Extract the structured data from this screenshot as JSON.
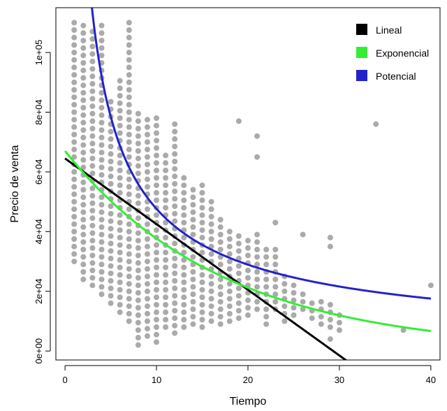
{
  "chart_data": {
    "type": "scatter",
    "xlabel": "Tiempo",
    "ylabel": "Precio de venta",
    "xlim": [
      -1,
      41
    ],
    "ylim": [
      -3000,
      115000
    ],
    "x_ticks": [
      0,
      10,
      20,
      30,
      40
    ],
    "x_tick_labels": [
      "0",
      "10",
      "20",
      "30",
      "40"
    ],
    "y_ticks": [
      0,
      20000,
      40000,
      60000,
      80000,
      100000
    ],
    "y_tick_labels": [
      "0e+00",
      "2e+04",
      "4e+04",
      "6e+04",
      "8e+04",
      "1e+05"
    ],
    "grid": false,
    "legend_position": "top-right",
    "point_color": "#AAAAAA",
    "scatter_columns": [
      {
        "x": 1,
        "min": 30000,
        "max": 110000
      },
      {
        "x": 2,
        "min": 24000,
        "max": 111000
      },
      {
        "x": 3,
        "min": 22000,
        "max": 109000
      },
      {
        "x": 4,
        "min": 19000,
        "max": 111000
      },
      {
        "x": 5,
        "min": 16000,
        "max": 85000
      },
      {
        "x": 6,
        "min": 13000,
        "max": 92000
      },
      {
        "x": 7,
        "min": 10000,
        "max": 110000
      },
      {
        "x": 8,
        "min": 2000,
        "max": 80000
      },
      {
        "x": 9,
        "min": 5000,
        "max": 78000
      },
      {
        "x": 10,
        "min": 3000,
        "max": 80000
      },
      {
        "x": 11,
        "min": 8000,
        "max": 66000
      },
      {
        "x": 12,
        "min": 6000,
        "max": 78000
      },
      {
        "x": 13,
        "min": 8000,
        "max": 58000
      },
      {
        "x": 14,
        "min": 9000,
        "max": 56000
      },
      {
        "x": 15,
        "min": 8000,
        "max": 57000
      },
      {
        "x": 16,
        "min": 10000,
        "max": 50000
      },
      {
        "x": 17,
        "min": 9000,
        "max": 46000
      },
      {
        "x": 18,
        "min": 10000,
        "max": 42000
      },
      {
        "x": 19,
        "min": 11000,
        "max": 40000
      },
      {
        "x": 20,
        "min": 12000,
        "max": 38000
      },
      {
        "x": 21,
        "min": 14000,
        "max": 39000
      },
      {
        "x": 22,
        "min": 9000,
        "max": 36000
      },
      {
        "x": 23,
        "min": 14000,
        "max": 35000
      },
      {
        "x": 24,
        "min": 10000,
        "max": 26000
      },
      {
        "x": 25,
        "min": 12000,
        "max": 22000
      },
      {
        "x": 26,
        "min": 14000,
        "max": 20000
      },
      {
        "x": 27,
        "min": 11000,
        "max": 18000
      },
      {
        "x": 28,
        "min": 9000,
        "max": 17000
      },
      {
        "x": 29,
        "min": 8000,
        "max": 16000
      },
      {
        "x": 30,
        "min": 7000,
        "max": 14000
      }
    ],
    "scatter_extra_points": [
      {
        "x": 19,
        "y": 77000
      },
      {
        "x": 21,
        "y": 72000
      },
      {
        "x": 21,
        "y": 65000
      },
      {
        "x": 23,
        "y": 43000
      },
      {
        "x": 26,
        "y": 39000
      },
      {
        "x": 29,
        "y": 38000
      },
      {
        "x": 29,
        "y": 35000
      },
      {
        "x": 34,
        "y": 76000
      },
      {
        "x": 37,
        "y": 7000
      },
      {
        "x": 40,
        "y": 22000
      },
      {
        "x": 29,
        "y": 4000
      }
    ],
    "series": [
      {
        "name": "Lineal",
        "model": "linear",
        "a": 64500,
        "b": -2200,
        "color": "#000000"
      },
      {
        "name": "Exponencial",
        "model": "exponential",
        "a": 67000,
        "b": -0.0575,
        "color": "#33EE33"
      },
      {
        "name": "Potencial",
        "model": "power",
        "a": 250000,
        "b": -0.72,
        "color": "#2222CC"
      }
    ]
  }
}
